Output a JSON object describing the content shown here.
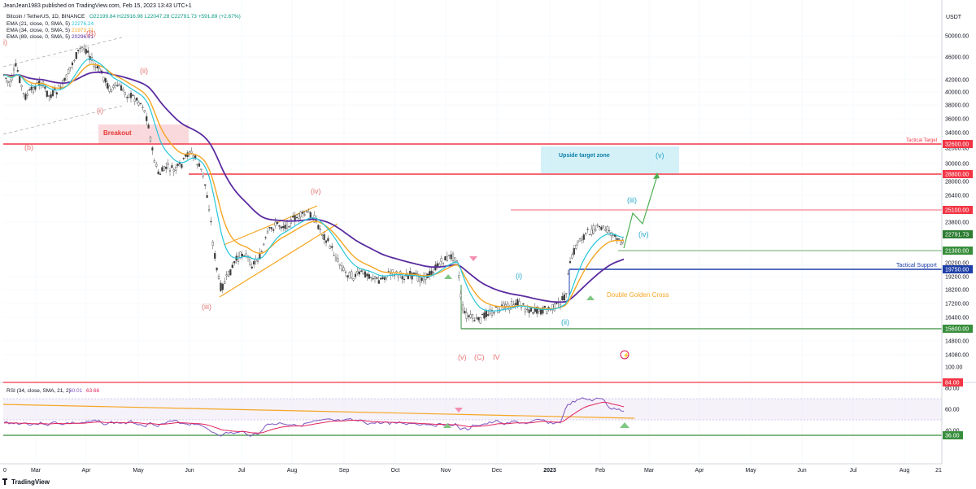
{
  "header": {
    "author_line": "JeanJean1983 published on TradingView.com, Feb 15, 2023 13:43 UTC+1",
    "symbol": "Bitcoin / TetherUS, 1D, BINANCE",
    "ohlc": "O22199.84 H22916.98 L22047.28 C22791.73 +591.89 (+2.67%)",
    "ema1": "EMA (21, close, 0, SMA, 5)",
    "ema1_val": "22276.24",
    "ema2": "EMA (34, close, 0, SMA, 5)",
    "ema2_val": "21973.71",
    "ema3": "EMA (89, close, 0, SMA, 5)",
    "ema3_val": "20296.51",
    "rsi": "RSI (34, close, SMA, 21, 2)",
    "rsi_val1": "60.01",
    "rsi_val2": "63.66",
    "footer_logo": "TradingView",
    "currency": "USDT"
  },
  "colors": {
    "ema21": "#26c6da",
    "ema34": "#f5a623",
    "ema89": "#5b2ca0",
    "candle": "#3c3c3c",
    "red_level": "#f23645",
    "green_level": "#388e3c",
    "blue_level": "#1e3fa8",
    "rsi_line": "#7e57c2",
    "rsi_ma": "#e0245e",
    "wave_pink": "#e57373",
    "wave_cyan": "#26a6c9"
  },
  "annotations": {
    "breakout": "Breakout",
    "upside_zone": "Upside target zone",
    "tactical_target": "Tactical Target",
    "tactical_support": "Tactical Support",
    "double_golden_cross": "Double Golden Cross",
    "waves": {
      "i_top": "i)",
      "B": "(B)",
      "ii": "(ii)",
      "i": "(i)",
      "b": "(b)",
      "iv": "(iv)",
      "iii": "(iii)",
      "v_low": "(v)",
      "C": "(C)",
      "IV": "IV",
      "i_new": "(i)",
      "ii_new": "(ii)",
      "iii_new": "(iii)",
      "iv_new": "(iv)",
      "v_new": "(v)"
    }
  },
  "chart_data": {
    "type": "candlestick",
    "series": [
      {
        "name": "EMA (21, close, 0, SMA, 5)"
      },
      {
        "name": "EMA (34, close, 0, SMA, 5)"
      },
      {
        "name": "EMA (89, close, 0, SMA, 5)"
      }
    ],
    "x_ticks": [
      "0",
      "Mar",
      "Apr",
      "May",
      "Jun",
      "Jul",
      "Aug",
      "Sep",
      "Oct",
      "Nov",
      "Dec",
      "2023",
      "Feb",
      "Mar",
      "Apr",
      "May",
      "Jun",
      "Jul",
      "Aug",
      "21"
    ],
    "y_ticks": [
      "50000.00",
      "46000.00",
      "42000.00",
      "40000.00",
      "38000.00",
      "36000.00",
      "34000.00",
      "32000.00",
      "30000.00",
      "28000.00",
      "26400.00",
      "23800.00",
      "19200.00",
      "18200.00",
      "17200.00",
      "16400.00",
      "14800.00",
      "14080.00"
    ],
    "price_labels": [
      {
        "value": "32600.00",
        "type": "red"
      },
      {
        "value": "28800.00",
        "type": "red"
      },
      {
        "value": "25100.00",
        "type": "red"
      },
      {
        "value": "22791.73",
        "type": "price"
      },
      {
        "value": "21300.00",
        "type": "green"
      },
      {
        "value": "20200.00",
        "type": "plain"
      },
      {
        "value": "19750.00",
        "type": "blue"
      },
      {
        "value": "15600.00",
        "type": "green"
      }
    ],
    "rsi": {
      "ticks": [
        "100.00",
        "80.00",
        "60.00",
        "40.00"
      ],
      "labels": [
        {
          "value": "84.00",
          "type": "red"
        },
        {
          "value": "36.00",
          "type": "green"
        }
      ]
    },
    "levels": {
      "tactical_target": 32600,
      "resistance": 28800,
      "r2": 25100,
      "s1": 21300,
      "tactical_support": 19750,
      "low": 15600
    }
  }
}
